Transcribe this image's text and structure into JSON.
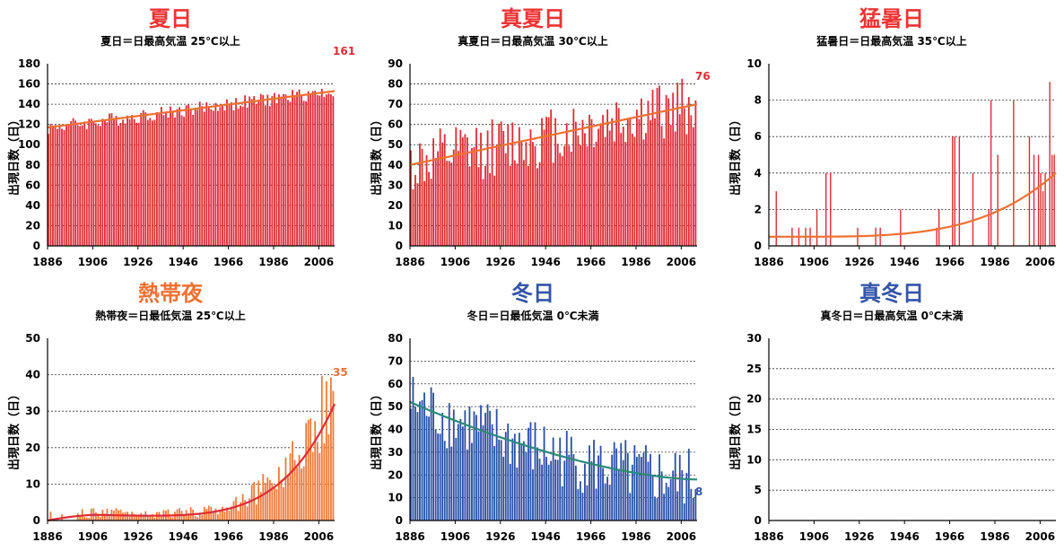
{
  "chart_data": [
    {
      "type": "bar",
      "title": "夏日",
      "title_color": "#ee3333",
      "subtitle": "夏日＝日最高気温 25℃以上",
      "ylabel": "出現日数（日）",
      "ylim": [
        0,
        180
      ],
      "yticks": [
        "0",
        "20",
        "40",
        "60",
        "80",
        "100",
        "120",
        "140",
        "160",
        "180"
      ],
      "xticks": [
        "1886",
        "1906",
        "1926",
        "1946",
        "1966",
        "1986",
        "2006"
      ],
      "bar_color": "#e02b35",
      "trend_color": "#f07030",
      "trend_curve": "linear",
      "trend": [
        117,
        153
      ],
      "end_label": "161",
      "end_label_color": "#e02b35",
      "x_start": 1886,
      "seed": 3,
      "noise": 7,
      "peaks": [],
      "x": [
        1886,
        2012
      ],
      "values": [
        117,
        153
      ]
    },
    {
      "type": "bar",
      "title": "真夏日",
      "title_color": "#ee3333",
      "subtitle": "真夏日＝日最高気温 30℃以上",
      "ylabel": "出現日数（日）",
      "ylim": [
        0,
        90
      ],
      "yticks": [
        "0",
        "10",
        "20",
        "30",
        "40",
        "50",
        "60",
        "70",
        "80",
        "90"
      ],
      "xticks": [
        "1886",
        "1906",
        "1926",
        "1946",
        "1966",
        "1986",
        "2006"
      ],
      "bar_color": "#e02b35",
      "trend_color": "#f07030",
      "trend_curve": "linear",
      "trend": [
        40,
        70
      ],
      "end_label": "76",
      "end_label_color": "#e02b35",
      "x_start": 1886,
      "seed": 11,
      "noise": 15,
      "peaks": [],
      "x": [
        1886,
        2012
      ],
      "values": [
        40,
        70
      ]
    },
    {
      "type": "bar",
      "title": "猛暑日",
      "title_color": "#ee3333",
      "subtitle": "猛暑日＝日最高気温 35℃以上",
      "ylabel": "出現日数（日）",
      "ylim": [
        0,
        10
      ],
      "yticks": [
        "0",
        "2",
        "4",
        "6",
        "8",
        "10"
      ],
      "xticks": [
        "1886",
        "1906",
        "1926",
        "1946",
        "1966",
        "1986",
        "2006"
      ],
      "bar_color": "#e02b35",
      "trend_color": "#f07030",
      "trend_curve": "exp",
      "trend": [
        0.5,
        4
      ],
      "end_label": "",
      "end_label_color": "#e02b35",
      "x_start": 1886,
      "seed": 0,
      "noise": 0,
      "peaks": [
        [
          1889,
          3
        ],
        [
          1896,
          1
        ],
        [
          1899,
          1
        ],
        [
          1902,
          1
        ],
        [
          1904,
          1
        ],
        [
          1907,
          2
        ],
        [
          1911,
          4
        ],
        [
          1913,
          4
        ],
        [
          1925,
          1
        ],
        [
          1933,
          1
        ],
        [
          1935,
          1
        ],
        [
          1944,
          2
        ],
        [
          1960,
          1
        ],
        [
          1961,
          2
        ],
        [
          1967,
          6
        ],
        [
          1968,
          6
        ],
        [
          1970,
          6
        ],
        [
          1976,
          4
        ],
        [
          1983,
          2
        ],
        [
          1984,
          8
        ],
        [
          1987,
          5
        ],
        [
          1994,
          8
        ],
        [
          2001,
          6
        ],
        [
          2003,
          5
        ],
        [
          2005,
          5
        ],
        [
          2006,
          4
        ],
        [
          2007,
          3
        ],
        [
          2008,
          4
        ],
        [
          2010,
          9
        ],
        [
          2011,
          5
        ],
        [
          2012,
          5
        ]
      ],
      "x": [
        1886,
        2012
      ],
      "values": [
        0.5,
        4
      ]
    },
    {
      "type": "bar",
      "title": "熱帯夜",
      "title_color": "#f07030",
      "subtitle": "熱帯夜＝日最低気温 25℃以上",
      "ylabel": "出現日数（日）",
      "ylim": [
        0,
        50
      ],
      "yticks": [
        "0",
        "10",
        "20",
        "30",
        "40",
        "50"
      ],
      "xticks": [
        "1886",
        "1906",
        "1926",
        "1946",
        "1966",
        "1986",
        "2006"
      ],
      "bar_color": "#f07a3a",
      "trend_color": "#e02b35",
      "trend_curve": "exp2",
      "trend": [
        0,
        32
      ],
      "end_label": "35",
      "end_label_color": "#f07030",
      "x_start": 1886,
      "seed": 21,
      "noise": 0.6,
      "peaks": [],
      "x": [
        1886,
        2012
      ],
      "values": [
        0,
        32
      ]
    },
    {
      "type": "bar",
      "title": "冬日",
      "title_color": "#3355aa",
      "subtitle": "冬日＝日最低気温 0℃未満",
      "ylabel": "出現日数（日）",
      "ylim": [
        0,
        80
      ],
      "yticks": [
        "0",
        "10",
        "20",
        "30",
        "40",
        "50",
        "60",
        "70",
        "80"
      ],
      "xticks": [
        "1886",
        "1906",
        "1926",
        "1946",
        "1966",
        "1986",
        "2006"
      ],
      "bar_color": "#2a4fa8",
      "trend_color": "#2a8a7a",
      "trend_curve": "decay",
      "trend": [
        52,
        18
      ],
      "end_label": "8",
      "end_label_color": "#3355aa",
      "x_start": 1886,
      "seed": 7,
      "noise": 14,
      "peaks": [],
      "x": [
        1886,
        2012
      ],
      "values": [
        52,
        18
      ]
    },
    {
      "type": "bar",
      "title": "真冬日",
      "title_color": "#3355aa",
      "subtitle": "真冬日＝日最高気温 0℃未満",
      "ylabel": "出現日数（日）",
      "ylim": [
        0,
        30
      ],
      "yticks": [
        "0",
        "5",
        "10",
        "15",
        "20",
        "25",
        "30"
      ],
      "xticks": [
        "1886",
        "1906",
        "1926",
        "1946",
        "1966",
        "1986",
        "2006"
      ],
      "bar_color": "#2a4fa8",
      "trend_color": "",
      "trend_curve": "none",
      "trend": [
        0,
        0
      ],
      "end_label": "",
      "end_label_color": "#3355aa",
      "x_start": 1886,
      "seed": 0,
      "noise": 0,
      "peaks": [],
      "x": [
        1886,
        2012
      ],
      "values": [
        0,
        0
      ]
    }
  ]
}
